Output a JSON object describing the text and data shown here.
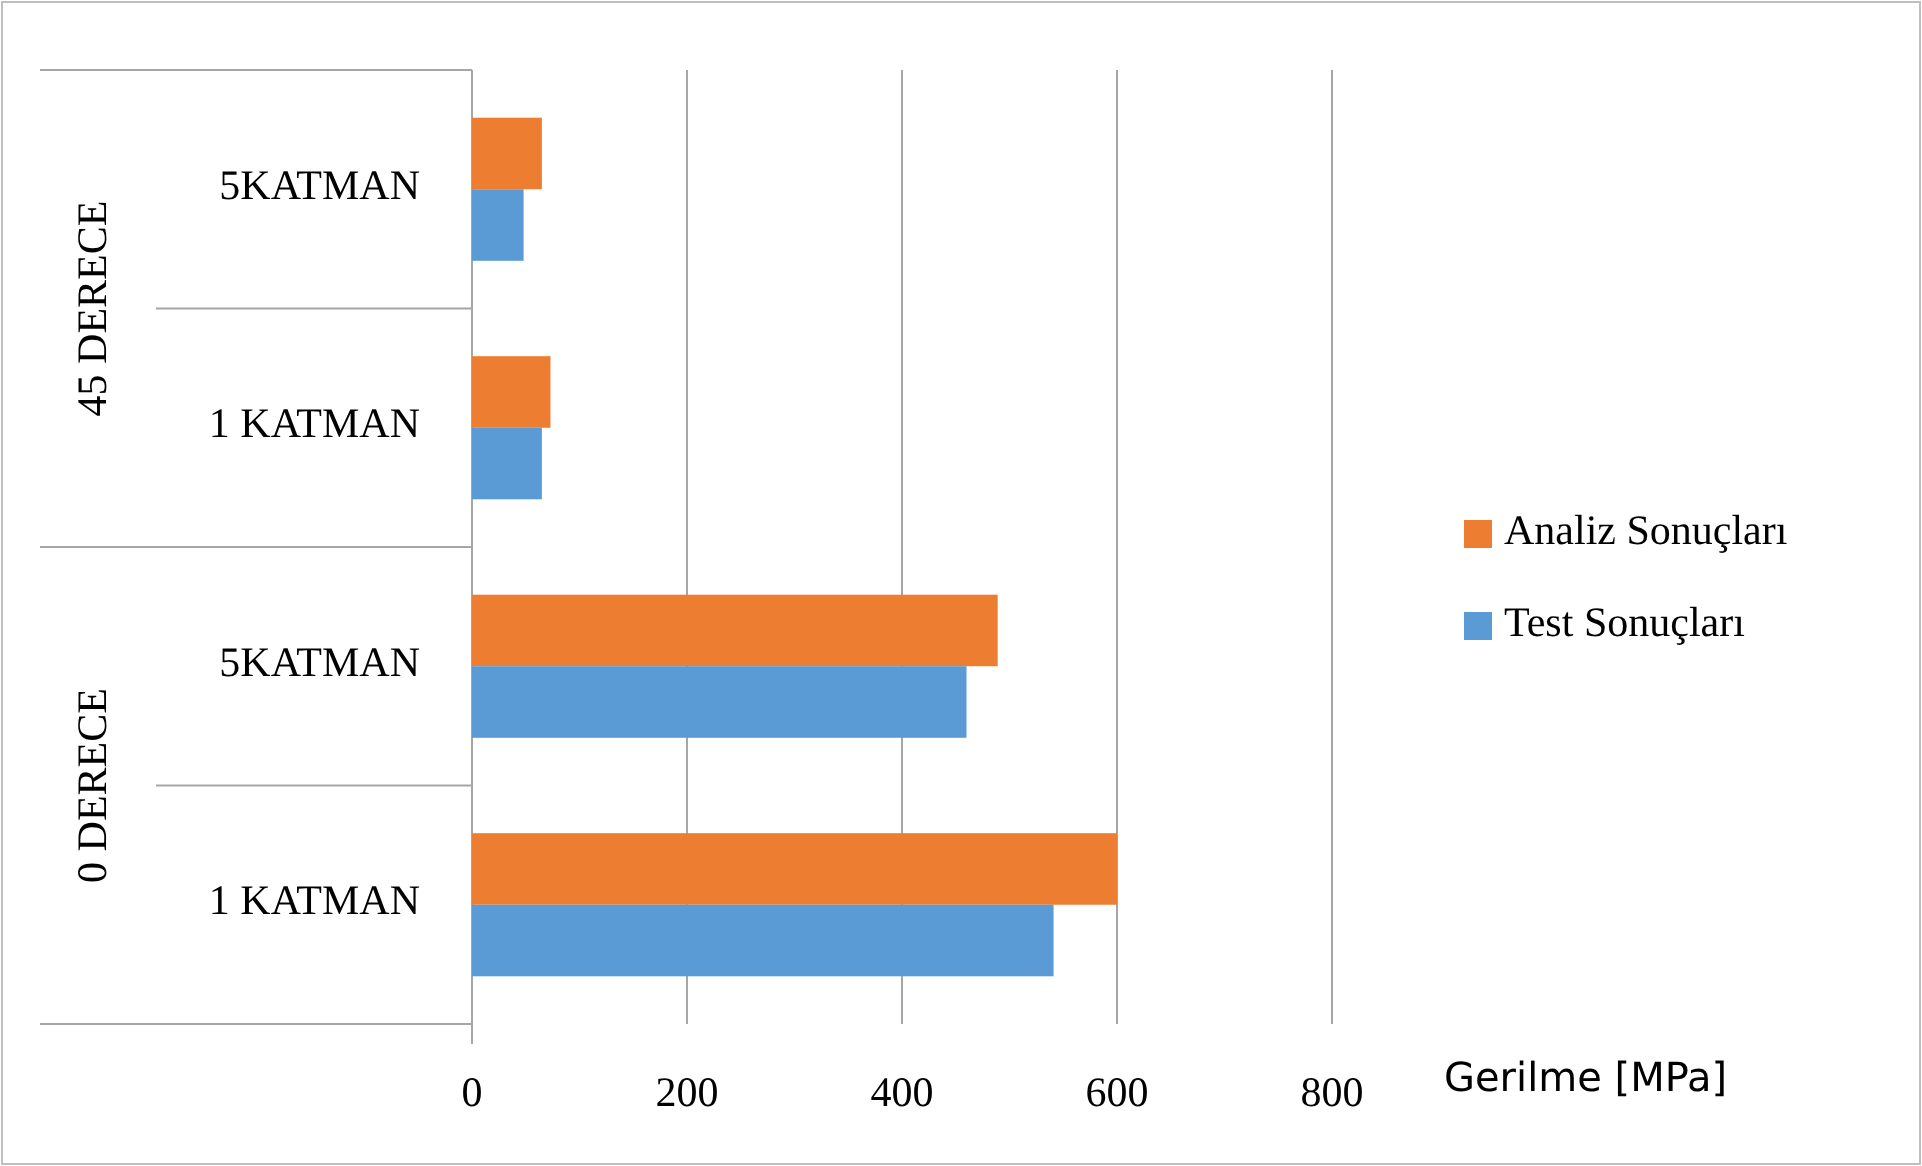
{
  "chart_data": {
    "type": "bar",
    "orientation": "horizontal",
    "categories": [
      "5KATMAN",
      "1 KATMAN",
      "5KATMAN",
      "1 KATMAN"
    ],
    "series": [
      {
        "name": "Analiz Sonuçları",
        "color": "#ed7d31",
        "values": [
          65,
          73,
          489,
          600
        ]
      },
      {
        "name": "Test Sonuçları",
        "color": "#5b9bd5",
        "values": [
          48,
          65,
          460,
          541
        ]
      }
    ],
    "xlim": [
      0,
      800
    ],
    "xticks": [
      0,
      200,
      400,
      600,
      800
    ],
    "xlabel": "Gerilme [MPa]",
    "grid": "x",
    "legend": "right",
    "annotations": [
      "45 DERECE",
      "0 DERECE"
    ]
  }
}
